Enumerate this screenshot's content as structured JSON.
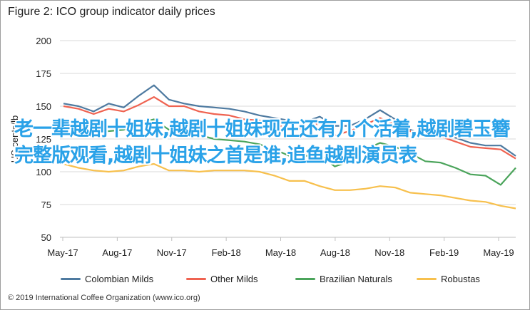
{
  "chart_data": {
    "type": "line",
    "title": "Figure 2: ICO group indicator daily prices",
    "ylabel": "US cents/lb",
    "xlabel": "",
    "ylim": [
      50,
      200
    ],
    "yticks": [
      50,
      75,
      100,
      125,
      150,
      175,
      200
    ],
    "xticks": [
      "May-17",
      "Aug-17",
      "Nov-17",
      "Feb-18",
      "May-18",
      "Aug-18",
      "Nov-18",
      "Feb-19",
      "May-19"
    ],
    "grid": true,
    "legend_position": "bottom",
    "series": [
      {
        "name": "Colombian Milds",
        "color": "#4e7aa0",
        "values": [
          152,
          150,
          146,
          152,
          149,
          158,
          166,
          155,
          152,
          150,
          149,
          148,
          146,
          143,
          141,
          139,
          138,
          142,
          135,
          135,
          140,
          147,
          140,
          132,
          128,
          128,
          126,
          122,
          120,
          120,
          112
        ]
      },
      {
        "name": "Other Milds",
        "color": "#ef6351",
        "values": [
          150,
          148,
          144,
          148,
          146,
          151,
          157,
          150,
          150,
          146,
          144,
          143,
          140,
          139,
          136,
          133,
          133,
          137,
          128,
          131,
          136,
          141,
          136,
          131,
          127,
          127,
          123,
          119,
          118,
          117,
          110
        ]
      },
      {
        "name": "Brazilian Naturals",
        "color": "#4ba45b",
        "values": [
          136,
          133,
          130,
          131,
          132,
          137,
          140,
          132,
          131,
          128,
          125,
          124,
          123,
          121,
          117,
          112,
          112,
          113,
          104,
          108,
          117,
          122,
          119,
          114,
          108,
          107,
          103,
          98,
          97,
          90,
          103
        ]
      },
      {
        "name": "Robustas",
        "color": "#f7c04d",
        "values": [
          106,
          103,
          101,
          100,
          101,
          104,
          106,
          101,
          101,
          100,
          101,
          101,
          101,
          100,
          97,
          93,
          93,
          89,
          86,
          86,
          87,
          89,
          88,
          84,
          83,
          82,
          80,
          78,
          77,
          74,
          72
        ]
      }
    ]
  },
  "overlay_text": "老一辈越剧十姐妹,越剧十姐妹现在还有几个活着,越剧碧玉簪完整版观看,越剧十姐妹之首是谁,追鱼越剧演员表",
  "footer": "© 2019 International Coffee Organization (www.ico.org)"
}
